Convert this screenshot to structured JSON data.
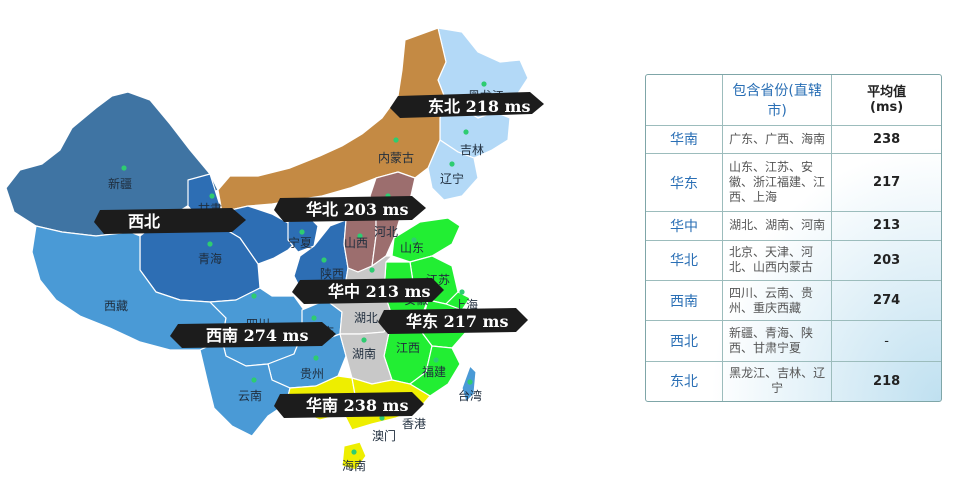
{
  "map": {
    "provinces": [
      {
        "id": "heilongjiang",
        "name": "黑龙江"
      },
      {
        "id": "jilin",
        "name": "吉林"
      },
      {
        "id": "liaoning",
        "name": "辽宁"
      },
      {
        "id": "neimenggu",
        "name": "内蒙古"
      },
      {
        "id": "xinjiang",
        "name": "新疆"
      },
      {
        "id": "gansu",
        "name": "甘肃"
      },
      {
        "id": "ningxia",
        "name": "宁夏"
      },
      {
        "id": "qinghai",
        "name": "青海"
      },
      {
        "id": "xizang",
        "name": "西藏"
      },
      {
        "id": "shaanxi",
        "name": "陕西"
      },
      {
        "id": "shanxi",
        "name": "山西"
      },
      {
        "id": "hebei",
        "name": "河北"
      },
      {
        "id": "shandong",
        "name": "山东"
      },
      {
        "id": "jiangsu",
        "name": "江苏"
      },
      {
        "id": "anhui",
        "name": "安徽"
      },
      {
        "id": "shanghai",
        "name": "上海"
      },
      {
        "id": "sichuan",
        "name": "四川"
      },
      {
        "id": "chongqing",
        "name": "重庆"
      },
      {
        "id": "hubei",
        "name": "湖北"
      },
      {
        "id": "hunan",
        "name": "湖南"
      },
      {
        "id": "jiangxi",
        "name": "江西"
      },
      {
        "id": "guizhou",
        "name": "贵州"
      },
      {
        "id": "yunnan",
        "name": "云南"
      },
      {
        "id": "fujian",
        "name": "福建"
      },
      {
        "id": "taiwan",
        "name": "台湾"
      },
      {
        "id": "xianggang",
        "name": "香港"
      },
      {
        "id": "aomen",
        "name": "澳门"
      },
      {
        "id": "hainan",
        "name": "海南"
      }
    ],
    "bands": {
      "dongbei": "东北 218 ms",
      "xibei": "西北",
      "huabei": "华北 203 ms",
      "huazhong": "华中 213 ms",
      "huadong": "华东 217 ms",
      "xinan": "西南 274 ms",
      "huanan": "华南 238 ms"
    },
    "colors": {
      "dongbei": "#b3d9f7",
      "xibei_dark": "#3f74a3",
      "xibei_mid": "#2d6eb4",
      "xinan": "#4a9ad6",
      "huabei_brown": "#c48a44",
      "huabei_mauve": "#9c6e6e",
      "huazhong": "#c8c8c8",
      "huadong": "#22ee33",
      "huanan": "#eeee00"
    }
  },
  "table": {
    "header": {
      "region": "",
      "provinces": "包含省份(直辖市)",
      "avg": "平均值",
      "unit": "(ms)"
    },
    "rows": [
      {
        "region": "华南",
        "provinces": "广东、广西、海南",
        "value": "238"
      },
      {
        "region": "华东",
        "provinces": "山东、江苏、安徽、浙江福建、江西、上海",
        "value": "217"
      },
      {
        "region": "华中",
        "provinces": "湖北、湖南、河南",
        "value": "213"
      },
      {
        "region": "华北",
        "provinces": "北京、天津、河北、山西内蒙古",
        "value": "203"
      },
      {
        "region": "西南",
        "provinces": "四川、云南、贵州、重庆西藏",
        "value": "274"
      },
      {
        "region": "西北",
        "provinces": "新疆、青海、陕西、甘肃宁夏",
        "value": "-"
      },
      {
        "region": "东北",
        "provinces": "黑龙江、吉林、辽宁",
        "value": "218"
      }
    ]
  }
}
